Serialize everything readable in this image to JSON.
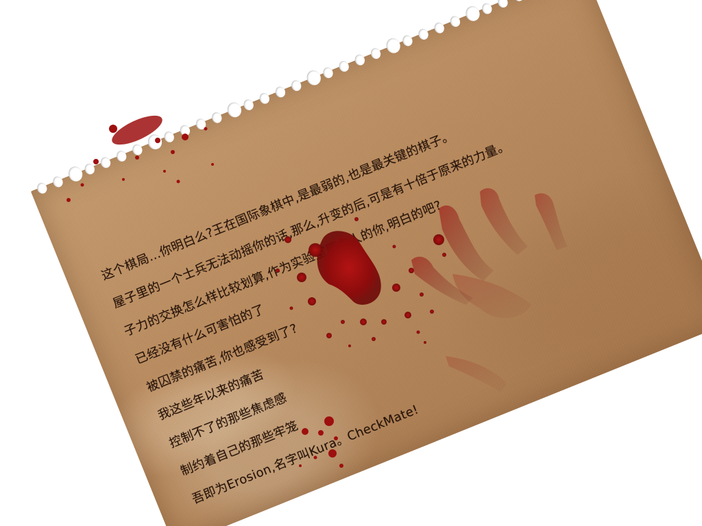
{
  "letter": {
    "lines": [
      "这个棋局...你明白么?王在国际象棋中,是最弱的,也是最关键的棋子。",
      "屋子里的一个士兵无法动摇你的话,那么,升变的后,可是有十倍于原来的力量。",
      "子力的交换怎么样比较划算,作为实验室原主人的你,明白的吧?",
      "已经没有什么可害怕的了",
      "被囚禁的痛苦,你也感受到了?",
      "我这些年以来的痛苦",
      "控制不了的那些焦虑感",
      "制约着自己的那些牢笼",
      "吾即为Erosion,名字叫Kura。CheckMate!"
    ]
  },
  "colors": {
    "paper": "#b88a5e",
    "ink": "#241208",
    "blood": "#9e0f0f"
  }
}
